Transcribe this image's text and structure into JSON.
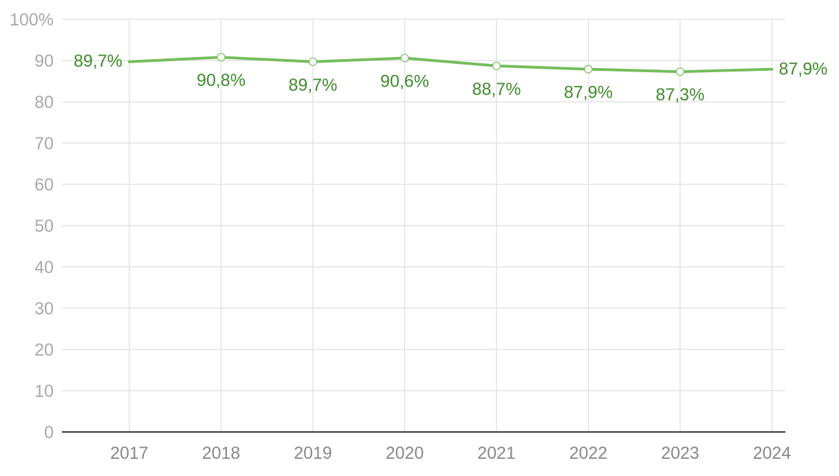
{
  "chart_data": {
    "type": "line",
    "title": "",
    "xlabel": "",
    "ylabel": "",
    "ylim": [
      0,
      100
    ],
    "y_ticks": [
      {
        "value": 0,
        "label": "0"
      },
      {
        "value": 10,
        "label": "10"
      },
      {
        "value": 20,
        "label": "20"
      },
      {
        "value": 30,
        "label": "30"
      },
      {
        "value": 40,
        "label": "40"
      },
      {
        "value": 50,
        "label": "50"
      },
      {
        "value": 60,
        "label": "60"
      },
      {
        "value": 70,
        "label": "70"
      },
      {
        "value": 80,
        "label": "80"
      },
      {
        "value": 90,
        "label": "90"
      },
      {
        "value": 100,
        "label": "100%"
      }
    ],
    "categories": [
      "2017",
      "2018",
      "2019",
      "2020",
      "2021",
      "2022",
      "2023",
      "2024"
    ],
    "series": [
      {
        "values": [
          89.7,
          90.8,
          89.7,
          90.6,
          88.7,
          87.9,
          87.3,
          87.9
        ],
        "data_labels": [
          "89,7%",
          "90,8%",
          "89,7%",
          "90,6%",
          "88,7%",
          "87,9%",
          "87,3%",
          "87,9%"
        ],
        "color": "#74bd5c",
        "label_color": "#3e8c2b"
      }
    ],
    "grid": true,
    "legend": "none"
  }
}
